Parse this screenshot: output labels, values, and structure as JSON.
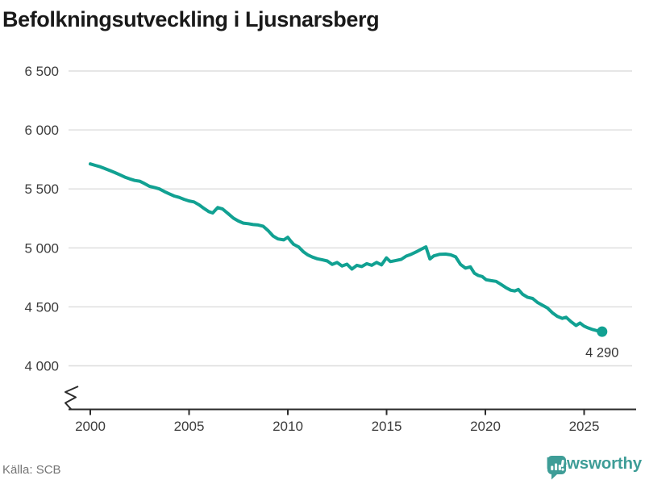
{
  "title": "Befolkningsutveckling i Ljusnarsberg",
  "source": "Källa: SCB",
  "brand": "Newsworthy",
  "colors": {
    "line": "#11a192",
    "brand": "#3e9d97",
    "grid": "#dddddd",
    "axis": "#2b2b2b",
    "tick_label": "#3c3c3c",
    "muted_text": "#757575",
    "title": "#191919"
  },
  "chart_data": {
    "type": "line",
    "title": "Befolkningsutveckling i Ljusnarsberg",
    "source": "Källa: SCB",
    "grid": "horizontal",
    "legend": "none",
    "axis_break_bottom_left": true,
    "xlim": [
      1998.9,
      2027.6
    ],
    "ylim_visible": [
      4000,
      6500
    ],
    "x_tick_values": [
      2000,
      2005,
      2010,
      2015,
      2020,
      2025
    ],
    "x_tick_labels": [
      "2000",
      "2005",
      "2010",
      "2015",
      "2020",
      "2025"
    ],
    "y_tick_values": [
      6500,
      6000,
      5500,
      5000,
      4500,
      4000
    ],
    "y_tick_labels": [
      "6 500",
      "6 000",
      "5 500",
      "5 000",
      "4 500",
      "4 000"
    ],
    "last_point": {
      "x": 2025.92,
      "y": 4290,
      "label": "4 290"
    },
    "series": [
      {
        "x": [
          2000,
          2000.25,
          2000.5,
          2000.75,
          2001,
          2001.25,
          2001.5,
          2001.75,
          2002,
          2002.25,
          2002.5,
          2002.75,
          2003,
          2003.25,
          2003.5,
          2003.75,
          2004,
          2004.25,
          2004.5,
          2004.75,
          2005,
          2005.25,
          2005.5,
          2005.75,
          2006,
          2006.2,
          2006.45,
          2006.7,
          2007,
          2007.25,
          2007.5,
          2007.75,
          2008,
          2008.25,
          2008.5,
          2008.75,
          2009,
          2009.25,
          2009.5,
          2009.8,
          2010,
          2010.15,
          2010.3,
          2010.55,
          2010.8,
          2011,
          2011.25,
          2011.5,
          2011.75,
          2012,
          2012.25,
          2012.5,
          2012.75,
          2013,
          2013.25,
          2013.5,
          2013.75,
          2014,
          2014.25,
          2014.5,
          2014.75,
          2015,
          2015.2,
          2015.5,
          2015.75,
          2016,
          2016.25,
          2016.5,
          2016.75,
          2017,
          2017.2,
          2017.4,
          2017.7,
          2018,
          2018.25,
          2018.5,
          2018.75,
          2019,
          2019.25,
          2019.45,
          2019.65,
          2019.85,
          2020.05,
          2020.3,
          2020.55,
          2020.8,
          2021.05,
          2021.3,
          2021.5,
          2021.68,
          2021.9,
          2022.15,
          2022.4,
          2022.65,
          2022.9,
          2023.15,
          2023.4,
          2023.65,
          2023.9,
          2024.1,
          2024.35,
          2024.6,
          2024.8,
          2025,
          2025.2,
          2025.45,
          2025.7,
          2025.92
        ],
        "y": [
          5712,
          5700,
          5688,
          5672,
          5655,
          5638,
          5620,
          5600,
          5585,
          5572,
          5566,
          5545,
          5522,
          5512,
          5500,
          5478,
          5458,
          5440,
          5428,
          5412,
          5398,
          5390,
          5366,
          5336,
          5308,
          5296,
          5342,
          5330,
          5288,
          5252,
          5228,
          5210,
          5205,
          5198,
          5194,
          5184,
          5148,
          5102,
          5076,
          5068,
          5090,
          5058,
          5030,
          5008,
          4966,
          4942,
          4922,
          4908,
          4899,
          4889,
          4860,
          4876,
          4846,
          4862,
          4820,
          4852,
          4842,
          4866,
          4852,
          4877,
          4856,
          4915,
          4884,
          4894,
          4903,
          4930,
          4946,
          4966,
          4988,
          5008,
          4906,
          4932,
          4946,
          4947,
          4941,
          4924,
          4860,
          4828,
          4839,
          4786,
          4766,
          4757,
          4730,
          4722,
          4716,
          4690,
          4663,
          4641,
          4635,
          4648,
          4606,
          4581,
          4571,
          4537,
          4514,
          4491,
          4450,
          4420,
          4402,
          4412,
          4374,
          4342,
          4363,
          4337,
          4322,
          4307,
          4296,
          4290
        ]
      }
    ]
  }
}
